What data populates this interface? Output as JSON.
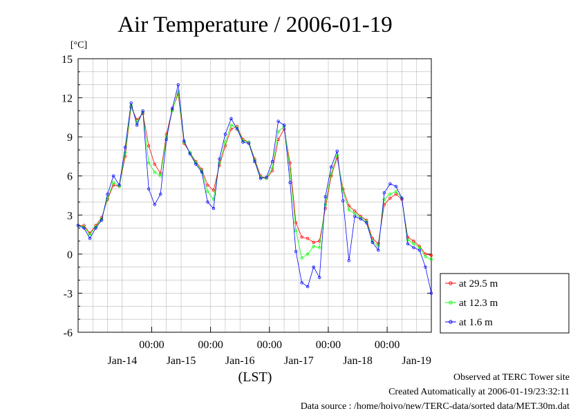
{
  "chart_data": {
    "type": "line",
    "title": "Air Temperature / 2006-01-19",
    "ylabel": "[°C]",
    "xlabel": "(LST)",
    "ylim": [
      -6,
      15
    ],
    "yticks": [
      "15",
      "12",
      "9",
      "6",
      "3",
      "0",
      "-3",
      "-6"
    ],
    "ytick_values": [
      15,
      12,
      9,
      6,
      3,
      0,
      -3,
      -6
    ],
    "x_time_labels": [
      "00:00",
      "00:00",
      "00:00",
      "00:00",
      "00:00"
    ],
    "x_date_labels": [
      "Jan-14",
      "Jan-15",
      "Jan-16",
      "Jan-17",
      "Jan-18",
      "Jan-19"
    ],
    "x_unit": "days since 2006-01-13 18:00 LST",
    "xlim": [
      0,
      6
    ],
    "x": [
      0.0,
      0.1,
      0.2,
      0.3,
      0.4,
      0.5,
      0.6,
      0.7,
      0.8,
      0.9,
      1.0,
      1.1,
      1.2,
      1.3,
      1.4,
      1.5,
      1.6,
      1.7,
      1.8,
      1.9,
      2.0,
      2.1,
      2.2,
      2.3,
      2.4,
      2.5,
      2.6,
      2.7,
      2.8,
      2.9,
      3.0,
      3.1,
      3.2,
      3.3,
      3.4,
      3.5,
      3.6,
      3.7,
      3.8,
      3.9,
      4.0,
      4.1,
      4.2,
      4.3,
      4.4,
      4.5,
      4.6,
      4.7,
      4.8,
      4.9,
      5.0,
      5.1,
      5.2,
      5.3,
      5.4,
      5.5,
      5.6,
      5.7,
      5.8,
      5.9,
      6.0
    ],
    "series": [
      {
        "name": "at 29.5 m",
        "color": "#ff0000",
        "values": [
          2.2,
          2.2,
          1.6,
          2.2,
          2.8,
          4.2,
          5.3,
          5.2,
          7.5,
          11.3,
          10.3,
          10.8,
          8.3,
          6.9,
          6.2,
          9.2,
          11.1,
          12.3,
          8.5,
          7.8,
          7.1,
          6.5,
          5.3,
          4.9,
          6.8,
          8.3,
          9.6,
          9.8,
          8.8,
          8.6,
          7.3,
          6.0,
          5.8,
          6.4,
          8.8,
          9.6,
          7.0,
          2.4,
          1.3,
          1.2,
          0.9,
          1.0,
          3.5,
          6.0,
          7.4,
          5.0,
          3.7,
          3.3,
          2.9,
          2.6,
          1.2,
          0.8,
          3.8,
          4.3,
          4.6,
          4.2,
          1.3,
          1.0,
          0.6,
          0.0,
          -0.1
        ]
      },
      {
        "name": "at 12.3 m",
        "color": "#00ff00",
        "values": [
          2.2,
          2.1,
          1.5,
          2.1,
          2.7,
          4.3,
          5.5,
          5.2,
          7.8,
          11.4,
          10.1,
          10.9,
          7.0,
          6.3,
          6.0,
          9.0,
          11.0,
          12.5,
          8.6,
          7.8,
          7.0,
          6.4,
          4.8,
          4.2,
          7.0,
          8.6,
          9.9,
          9.7,
          8.7,
          8.6,
          7.2,
          5.9,
          5.8,
          6.6,
          9.4,
          9.8,
          6.5,
          1.8,
          -0.3,
          0.0,
          0.6,
          0.5,
          3.8,
          6.2,
          7.6,
          4.8,
          3.4,
          3.1,
          2.8,
          2.5,
          1.0,
          0.6,
          4.2,
          4.6,
          4.8,
          4.3,
          1.1,
          0.8,
          0.5,
          -0.2,
          -0.4
        ]
      },
      {
        "name": "at 1.6 m",
        "color": "#0000ff",
        "values": [
          2.2,
          2.0,
          1.2,
          2.0,
          2.6,
          4.6,
          6.0,
          5.3,
          8.2,
          11.6,
          9.9,
          11.0,
          5.0,
          3.8,
          4.6,
          8.8,
          11.2,
          13.0,
          8.7,
          7.7,
          6.9,
          6.3,
          4.0,
          3.5,
          7.3,
          9.2,
          10.4,
          9.6,
          8.6,
          8.5,
          7.1,
          5.8,
          5.9,
          7.1,
          10.2,
          9.9,
          5.5,
          0.2,
          -2.2,
          -2.5,
          -1.0,
          -1.8,
          4.4,
          6.7,
          7.9,
          4.1,
          -0.5,
          2.9,
          2.7,
          2.4,
          0.9,
          0.3,
          4.7,
          5.4,
          5.2,
          4.3,
          0.8,
          0.5,
          0.3,
          -1.0,
          -3.0
        ]
      }
    ],
    "legend_position": "right",
    "grid": true
  },
  "footer": {
    "line1": "Observed at TERC Tower site",
    "line2": "Created Automatically at 2006-01-19/23:32:11",
    "line3": "Data source : /home/hoivo/new/TERC-data/sorted data/MET.30m.dat"
  }
}
